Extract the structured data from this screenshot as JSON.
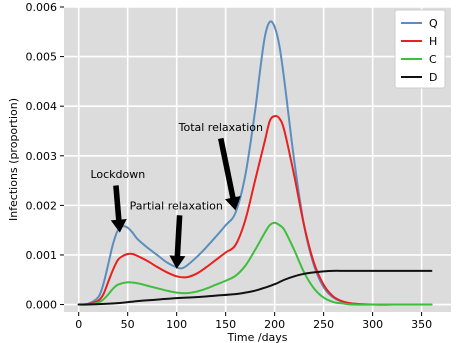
{
  "chart_data": {
    "type": "line",
    "xlabel": "Time /days",
    "ylabel": "Infections (proportion)",
    "xlim": [
      -15,
      380
    ],
    "ylim": [
      -0.00015,
      0.006
    ],
    "xticks": [
      0,
      50,
      100,
      150,
      200,
      250,
      300,
      350
    ],
    "yticks": [
      0.0,
      0.001,
      0.002,
      0.003,
      0.004,
      0.005,
      0.006
    ],
    "ytick_labels": [
      "0.000",
      "0.001",
      "0.002",
      "0.003",
      "0.004",
      "0.005",
      "0.006"
    ],
    "grid": true,
    "background": "#dcdcdc",
    "legend_position": "top-right",
    "series": [
      {
        "name": "Q",
        "color": "#5b8ebf",
        "x": [
          0,
          10,
          20,
          25,
          30,
          35,
          40,
          45,
          50,
          55,
          60,
          70,
          80,
          90,
          100,
          105,
          110,
          120,
          130,
          140,
          150,
          160,
          170,
          180,
          185,
          190,
          195,
          200,
          205,
          210,
          220,
          230,
          240,
          250,
          260,
          270,
          280,
          300,
          320,
          340,
          360
        ],
        "y": [
          0.0,
          2e-05,
          0.00015,
          0.0004,
          0.0008,
          0.00122,
          0.0015,
          0.00158,
          0.00155,
          0.00145,
          0.00132,
          0.00115,
          0.001,
          0.00085,
          0.00075,
          0.00073,
          0.00078,
          0.00095,
          0.00115,
          0.00137,
          0.0016,
          0.00185,
          0.0026,
          0.0039,
          0.0047,
          0.0054,
          0.0057,
          0.0056,
          0.0052,
          0.0045,
          0.0029,
          0.0016,
          0.0008,
          0.00035,
          0.00014,
          5e-05,
          2e-05,
          0.0,
          0.0,
          0.0,
          0.0
        ]
      },
      {
        "name": "H",
        "color": "#e8201f",
        "x": [
          0,
          10,
          20,
          25,
          30,
          35,
          40,
          45,
          50,
          55,
          60,
          70,
          80,
          90,
          100,
          110,
          120,
          130,
          140,
          150,
          160,
          170,
          180,
          190,
          195,
          200,
          205,
          210,
          220,
          230,
          240,
          250,
          260,
          270,
          280,
          300,
          320,
          340,
          360
        ],
        "y": [
          0.0,
          1e-05,
          8e-05,
          0.0002,
          0.00045,
          0.0007,
          0.0009,
          0.00098,
          0.00102,
          0.00102,
          0.00098,
          0.00088,
          0.00076,
          0.00065,
          0.00057,
          0.00055,
          0.00062,
          0.00075,
          0.0009,
          0.00105,
          0.0012,
          0.0017,
          0.0025,
          0.0033,
          0.0037,
          0.0038,
          0.00375,
          0.0035,
          0.0026,
          0.0016,
          0.00085,
          0.0004,
          0.00016,
          6e-05,
          2e-05,
          0.0,
          0.0,
          0.0,
          0.0
        ]
      },
      {
        "name": "C",
        "color": "#3dbf3d",
        "x": [
          0,
          10,
          20,
          25,
          30,
          35,
          40,
          50,
          60,
          70,
          80,
          90,
          100,
          110,
          120,
          130,
          140,
          150,
          160,
          170,
          180,
          190,
          195,
          200,
          205,
          210,
          220,
          230,
          240,
          250,
          260,
          270,
          280,
          300,
          320,
          340,
          360
        ],
        "y": [
          0.0,
          0.0,
          4e-05,
          0.0001,
          0.0002,
          0.00032,
          0.0004,
          0.00045,
          0.00043,
          0.00038,
          0.00033,
          0.00028,
          0.00024,
          0.00023,
          0.00026,
          0.00032,
          0.0004,
          0.00048,
          0.00058,
          0.00078,
          0.0011,
          0.00145,
          0.0016,
          0.00165,
          0.0016,
          0.0015,
          0.0011,
          0.00065,
          0.00033,
          0.00014,
          5e-05,
          2e-05,
          0.0,
          0.0,
          0.0,
          0.0,
          0.0
        ]
      },
      {
        "name": "D",
        "color": "#111111",
        "x": [
          0,
          20,
          40,
          60,
          80,
          100,
          120,
          140,
          160,
          170,
          180,
          190,
          200,
          210,
          220,
          230,
          240,
          250,
          260,
          270,
          280,
          300,
          320,
          340,
          360
        ],
        "y": [
          0.0,
          1e-05,
          3e-05,
          7e-05,
          0.0001,
          0.00013,
          0.00015,
          0.00018,
          0.00021,
          0.00024,
          0.00028,
          0.00034,
          0.00041,
          0.0005,
          0.00057,
          0.00062,
          0.00065,
          0.00067,
          0.00068,
          0.00068,
          0.00068,
          0.00068,
          0.00068,
          0.00068,
          0.00068
        ]
      }
    ],
    "annotations": [
      {
        "text": "Lockdown",
        "text_x": 12,
        "text_y": 0.00255,
        "arrow_from": [
          38,
          0.0024
        ],
        "arrow_to": [
          42,
          0.00145
        ]
      },
      {
        "text": "Partial relaxation",
        "text_x": 52,
        "text_y": 0.00192,
        "arrow_from": [
          103,
          0.0018
        ],
        "arrow_to": [
          100,
          0.00072
        ]
      },
      {
        "text": "Total relaxation",
        "text_x": 102,
        "text_y": 0.0035,
        "arrow_from": [
          145,
          0.00335
        ],
        "arrow_to": [
          160,
          0.0019
        ]
      }
    ]
  }
}
